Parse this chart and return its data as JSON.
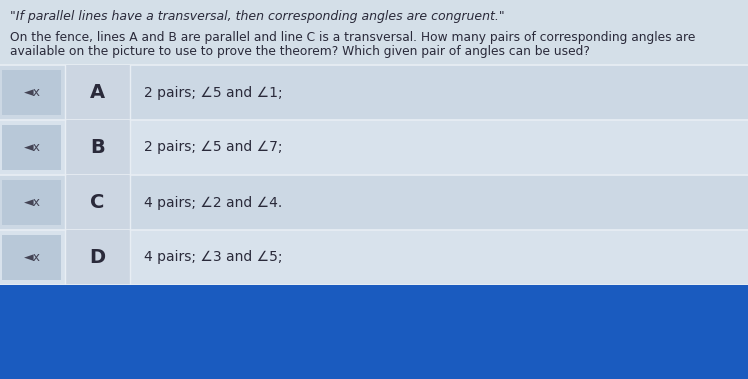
{
  "title_quote": "\"If parallel lines have a transversal, then corresponding angles are congruent.\"",
  "question_line1": "On the fence, lines A and B are parallel and line C is a transversal. How many pairs of corresponding angles are",
  "question_line2": "available on the picture to use to prove the theorem? Which given pair of angles can be used?",
  "options": [
    {
      "letter": "A",
      "text": "2 pairs; ∠5 and ∠1;"
    },
    {
      "letter": "B",
      "text": "2 pairs; ∠5 and ∠7;"
    },
    {
      "letter": "C",
      "text": "4 pairs; ∠2 and ∠4."
    },
    {
      "letter": "D",
      "text": "4 pairs; ∠3 and ∠5;"
    }
  ],
  "bg_color": "#d4dfe8",
  "row_bg_a": "#ccd8e4",
  "row_bg_b": "#d8e2ec",
  "icon_col_bg": "#b8c8d8",
  "letter_col_bg": "#ccd6e2",
  "border_color": "#e8eef4",
  "text_color": "#2a2a3a",
  "bottom_bar_color": "#1a5bbf",
  "speaker_color": "#444455",
  "fig_width": 7.48,
  "fig_height": 3.79
}
